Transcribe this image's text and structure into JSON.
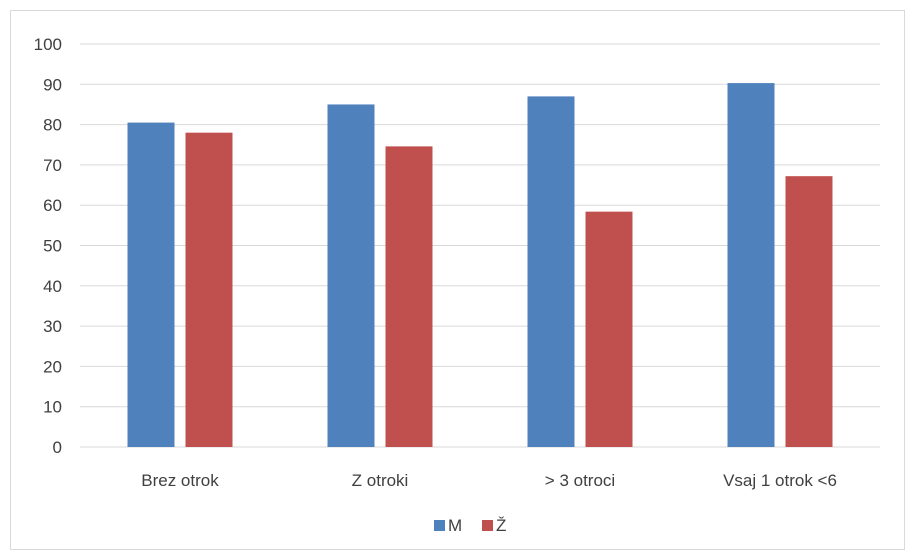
{
  "chart_data": {
    "type": "bar",
    "categories": [
      "Brez otrok",
      "Z otroki",
      "> 3 otroci",
      "Vsaj 1 otrok <6"
    ],
    "series": [
      {
        "name": "M",
        "color": "#4F81BD",
        "values": [
          80.5,
          85,
          87,
          90.3
        ]
      },
      {
        "name": "Ž",
        "color": "#C0504D",
        "values": [
          78,
          74.6,
          58.4,
          67.2
        ]
      }
    ],
    "ylim": [
      0,
      100
    ],
    "yticks": [
      "0",
      "10",
      "20",
      "30",
      "40",
      "50",
      "60",
      "70",
      "80",
      "90",
      "100"
    ],
    "grid": true,
    "legend": "bottom-center"
  }
}
